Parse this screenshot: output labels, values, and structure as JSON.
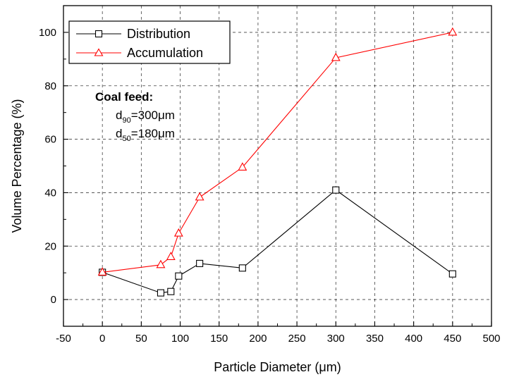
{
  "chart_data": {
    "type": "line",
    "xlabel": "Particle Diameter (μm)",
    "ylabel": "Volume Percentage (%)",
    "xlim": [
      -50,
      500
    ],
    "ylim": [
      -10,
      110
    ],
    "xticks": [
      -50,
      0,
      50,
      100,
      150,
      200,
      250,
      300,
      350,
      400,
      450,
      500
    ],
    "yticks": [
      0,
      20,
      40,
      60,
      80,
      100
    ],
    "xtick_labels": [
      "-50",
      "0",
      "50",
      "100",
      "150",
      "200",
      "250",
      "300",
      "350",
      "400",
      "450",
      "500"
    ],
    "ytick_labels": [
      "0",
      "20",
      "40",
      "60",
      "80",
      "100"
    ],
    "grid": true,
    "legend_position": "top-left",
    "series": [
      {
        "name": "Distribution",
        "marker": "square",
        "color": "#000000",
        "x": [
          0,
          75,
          88,
          98,
          125,
          180,
          300,
          450
        ],
        "y": [
          10.2,
          2.5,
          3,
          8.8,
          13.5,
          11.8,
          41,
          9.6
        ]
      },
      {
        "name": "Accumulation",
        "marker": "triangle",
        "color": "#ff0000",
        "x": [
          0,
          75,
          88,
          98,
          125,
          180,
          300,
          450
        ],
        "y": [
          10.2,
          13,
          16,
          24.8,
          38.3,
          49.5,
          90.5,
          100
        ]
      }
    ],
    "annotation": {
      "heading": "Coal feed:",
      "line1_prefix": "d",
      "line1_sub": "90",
      "line1_value": "=300μm",
      "line2_prefix": "d",
      "line2_sub": "50",
      "line2_value": "=180μm"
    }
  }
}
